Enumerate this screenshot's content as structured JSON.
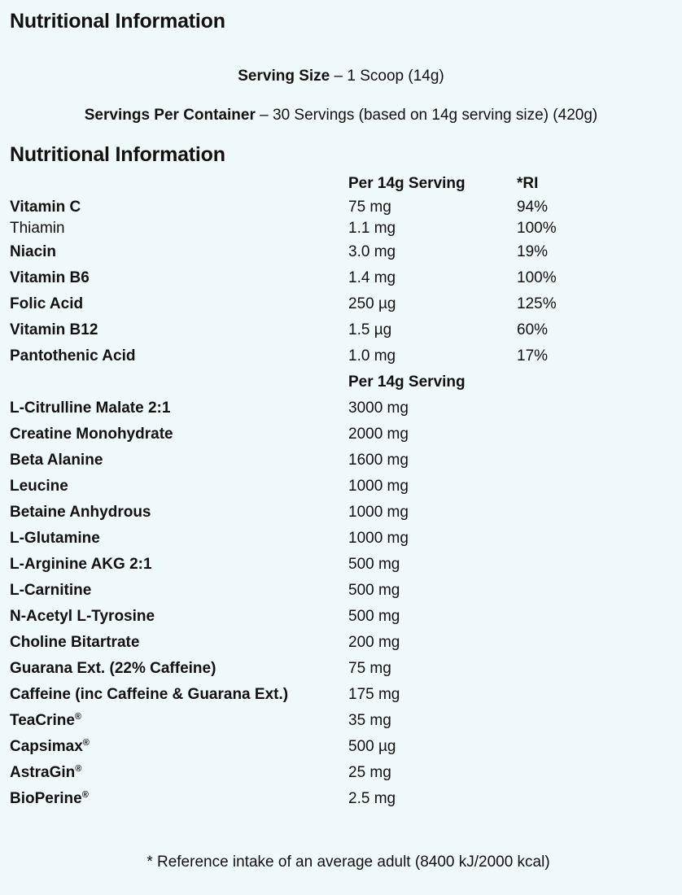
{
  "title": "Nutritional Information",
  "serving": {
    "size_label": "Serving Size",
    "size_value": " – 1 Scoop (14g)",
    "per_container_label": "Servings Per Container",
    "per_container_value": " – 30 Servings (based on 14g serving size) (420g)"
  },
  "section_title": "Nutritional Information",
  "vitamins": {
    "col_per_serving": "Per 14g Serving",
    "col_ri": "*RI",
    "rows": [
      {
        "name": "Vitamin C",
        "amount": "75 mg",
        "ri": "94%"
      },
      {
        "name": "Thiamin",
        "amount": "1.1 mg",
        "ri": "100%"
      },
      {
        "name": "Niacin",
        "amount": "3.0 mg",
        "ri": "19%"
      },
      {
        "name": "Vitamin B6",
        "amount": "1.4 mg",
        "ri": "100%"
      },
      {
        "name": "Folic Acid",
        "amount": "250 µg",
        "ri": "125%"
      },
      {
        "name": "Vitamin B12",
        "amount": "1.5 µg",
        "ri": "60%"
      },
      {
        "name": "Pantothenic Acid",
        "amount": "1.0 mg",
        "ri": "17%"
      }
    ]
  },
  "actives": {
    "col_per_serving": "Per 14g Serving",
    "rows": [
      {
        "name": "L-Citrulline Malate 2:1",
        "amount": "3000 mg"
      },
      {
        "name": "Creatine Monohydrate",
        "amount": "2000 mg"
      },
      {
        "name": "Beta Alanine",
        "amount": "1600 mg"
      },
      {
        "name": "Leucine",
        "amount": "1000 mg"
      },
      {
        "name": "Betaine Anhydrous",
        "amount": "1000 mg"
      },
      {
        "name": "L-Glutamine",
        "amount": "1000 mg"
      },
      {
        "name": "L-Arginine AKG 2:1",
        "amount": "500 mg"
      },
      {
        "name": "L-Carnitine",
        "amount": "500 mg"
      },
      {
        "name": "N-Acetyl L-Tyrosine",
        "amount": "500 mg"
      },
      {
        "name": "Choline Bitartrate",
        "amount": "200 mg"
      },
      {
        "name": "Guarana Ext. (22% Caffeine)",
        "amount": "75 mg"
      },
      {
        "name": "Caffeine (inc Caffeine & Guarana Ext.)",
        "amount": "175 mg"
      },
      {
        "name": "TeaCrine",
        "reg": "®",
        "amount": "35 mg"
      },
      {
        "name": "Capsimax",
        "reg": "®",
        "amount": "500 µg"
      },
      {
        "name": "AstraGin",
        "reg": "®",
        "amount": "25 mg"
      },
      {
        "name": "BioPerine",
        "reg": "®",
        "amount": "2.5 mg"
      }
    ]
  },
  "footnote": "* Reference intake of an average adult (8400 kJ/2000 kcal)"
}
